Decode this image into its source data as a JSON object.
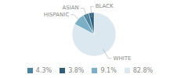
{
  "chart_data": {
    "type": "pie",
    "categories": [
      "WHITE",
      "HISPANIC",
      "ASIAN",
      "BLACK"
    ],
    "values": [
      82.8,
      9.1,
      4.3,
      3.8
    ],
    "value_labels": [
      "82.8%",
      "9.1%",
      "4.3%",
      "3.8%"
    ],
    "colors": [
      "#dce8f0",
      "#7aafc5",
      "#4a82a0",
      "#2d5f7a"
    ],
    "legend": "bottom"
  }
}
